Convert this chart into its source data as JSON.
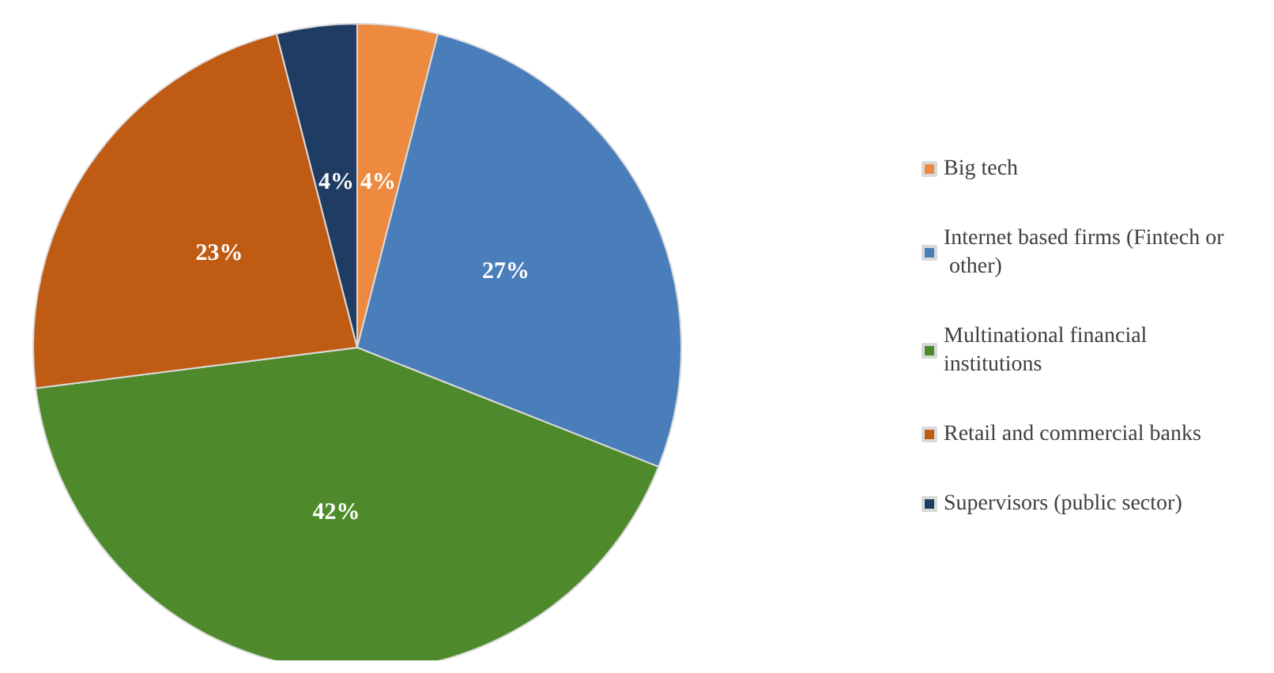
{
  "chart_data": {
    "type": "pie",
    "categories": [
      "Big tech",
      "Internet based firms (Fintech or other)",
      "Multinational financial institutions",
      "Retail and commercial banks",
      "Supervisors (public sector)"
    ],
    "values": [
      4,
      27,
      42,
      23,
      4
    ],
    "colors": [
      "#ed8a3f",
      "#4a7ebb",
      "#4e8a2b",
      "#c05b13",
      "#1f3d63"
    ],
    "value_labels": [
      "4%",
      "27%",
      "42%",
      "23%",
      "4%"
    ],
    "legend": "right"
  }
}
